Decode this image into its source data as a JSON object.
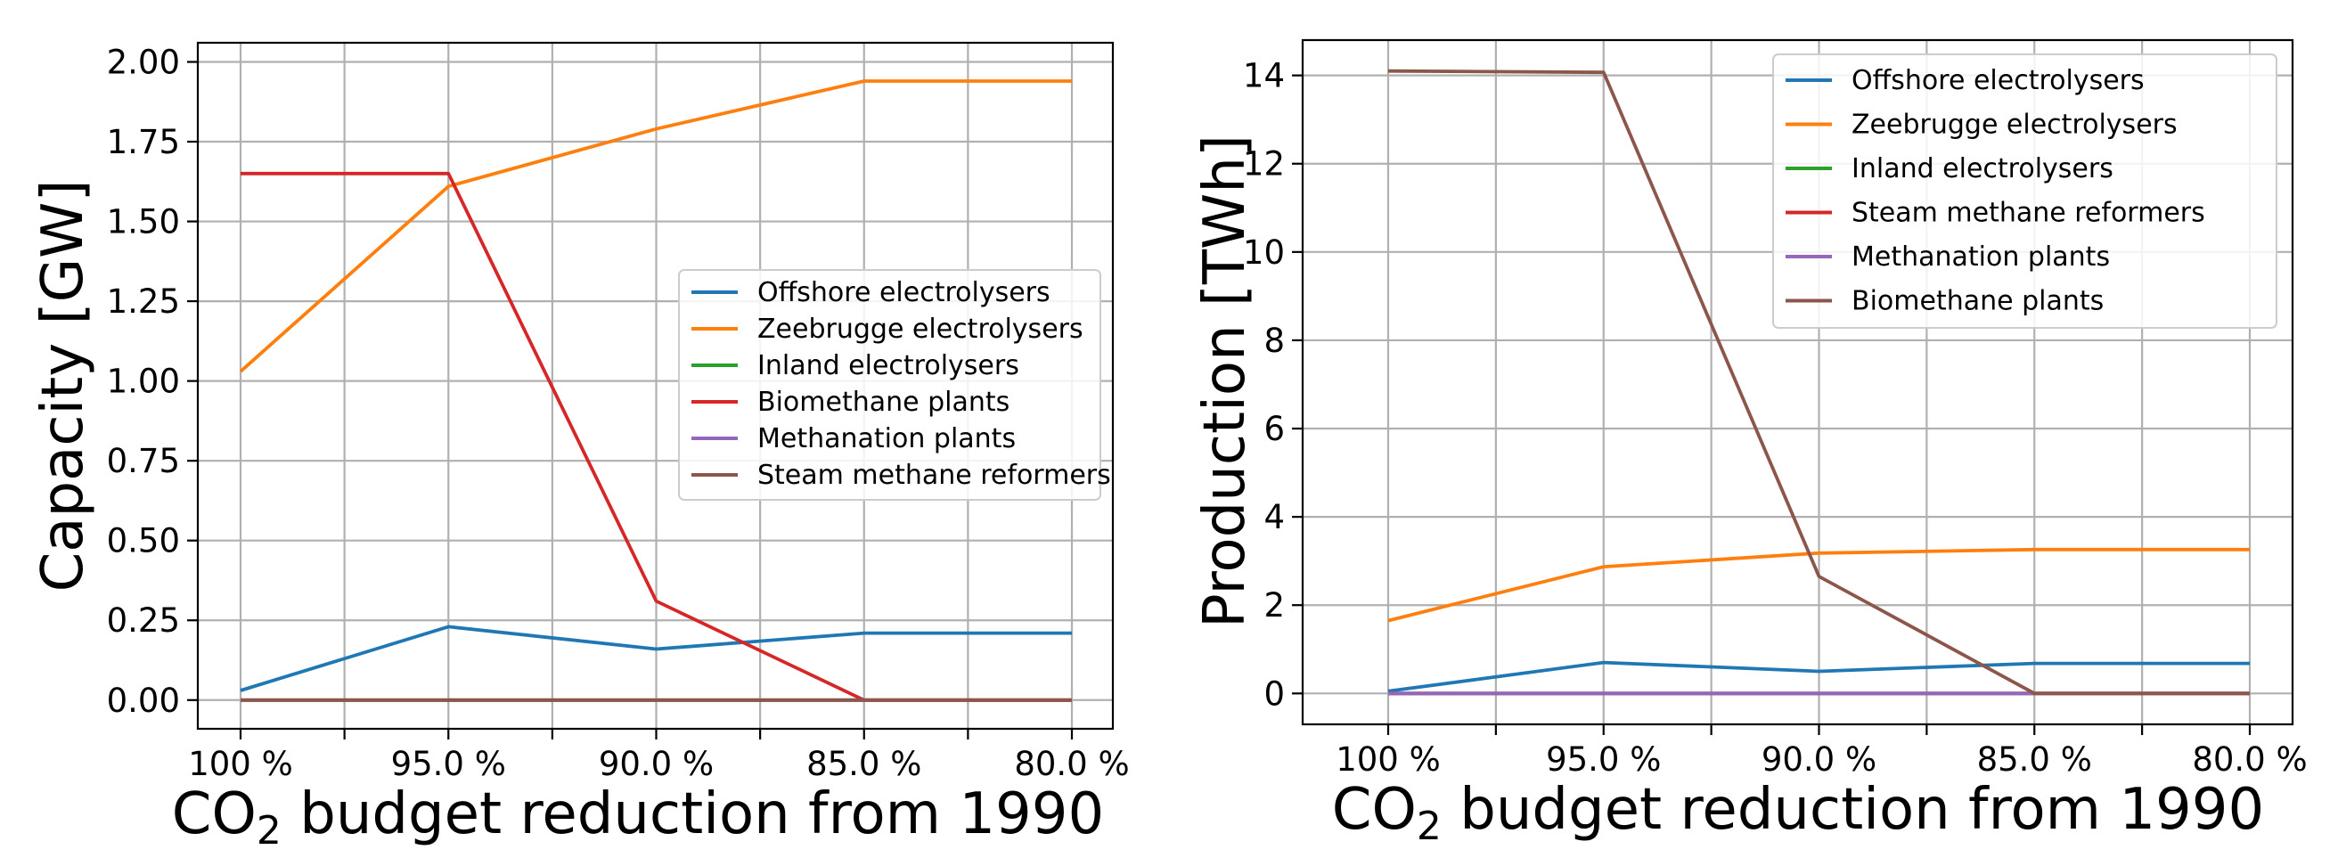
{
  "chart_data": [
    {
      "type": "line",
      "categories": [
        "100 %",
        "95.0 %",
        "90.0 %",
        "85.0 %",
        "80.0 %"
      ],
      "xlabel_prefix": "CO",
      "xlabel_subscript": "2",
      "xlabel_suffix": " budget reduction from 1990",
      "ylabel": "Capacity [GW]",
      "ylim": [
        -0.09,
        2.06
      ],
      "yticks": [
        0.0,
        0.25,
        0.5,
        0.75,
        1.0,
        1.25,
        1.5,
        1.75,
        2.0
      ],
      "ytick_labels": [
        "0.00",
        "0.25",
        "0.50",
        "0.75",
        "1.00",
        "1.25",
        "1.50",
        "1.75",
        "2.00"
      ],
      "grid": true,
      "legend_position": "center-right",
      "series": [
        {
          "name": "Offshore electrolysers",
          "color": "#1f77b4",
          "values": [
            0.03,
            0.23,
            0.16,
            0.21,
            0.21
          ]
        },
        {
          "name": "Zeebrugge electrolysers",
          "color": "#ff7f0e",
          "values": [
            1.03,
            1.61,
            1.79,
            1.94,
            1.94
          ]
        },
        {
          "name": "Inland electrolysers",
          "color": "#2ca02c",
          "values": [
            0,
            0,
            0,
            0,
            0
          ]
        },
        {
          "name": "Biomethane plants",
          "color": "#d62728",
          "values": [
            1.65,
            1.65,
            0.31,
            0.0,
            0.0
          ]
        },
        {
          "name": "Methanation plants",
          "color": "#9467bd",
          "values": [
            0,
            0,
            0,
            0,
            0
          ]
        },
        {
          "name": "Steam methane reformers",
          "color": "#8c564b",
          "values": [
            0,
            0,
            0,
            0,
            0
          ]
        }
      ]
    },
    {
      "type": "line",
      "categories": [
        "100 %",
        "95.0 %",
        "90.0 %",
        "85.0 %",
        "80.0 %"
      ],
      "xlabel_prefix": "CO",
      "xlabel_subscript": "2",
      "xlabel_suffix": " budget reduction from 1990",
      "ylabel": "Production [TWh]",
      "ylim": [
        -0.7,
        14.8
      ],
      "yticks": [
        0,
        2,
        4,
        6,
        8,
        10,
        12,
        14
      ],
      "ytick_labels": [
        "0",
        "2",
        "4",
        "6",
        "8",
        "10",
        "12",
        "14"
      ],
      "grid": true,
      "legend_position": "top-right",
      "series": [
        {
          "name": "Offshore electrolysers",
          "color": "#1f77b4",
          "values": [
            0.05,
            0.7,
            0.5,
            0.68,
            0.68
          ]
        },
        {
          "name": "Zeebrugge electrolysers",
          "color": "#ff7f0e",
          "values": [
            1.65,
            2.87,
            3.18,
            3.26,
            3.26
          ]
        },
        {
          "name": "Inland electrolysers",
          "color": "#2ca02c",
          "values": [
            0,
            0,
            0,
            0,
            0
          ]
        },
        {
          "name": "Steam methane reformers",
          "color": "#d62728",
          "values": [
            0,
            0,
            0,
            0,
            0
          ]
        },
        {
          "name": "Methanation plants",
          "color": "#9467bd",
          "values": [
            0,
            0,
            0,
            0,
            0
          ]
        },
        {
          "name": "Biomethane plants",
          "color": "#8c564b",
          "values": [
            14.1,
            14.07,
            2.65,
            0.0,
            0.0
          ]
        }
      ]
    }
  ]
}
